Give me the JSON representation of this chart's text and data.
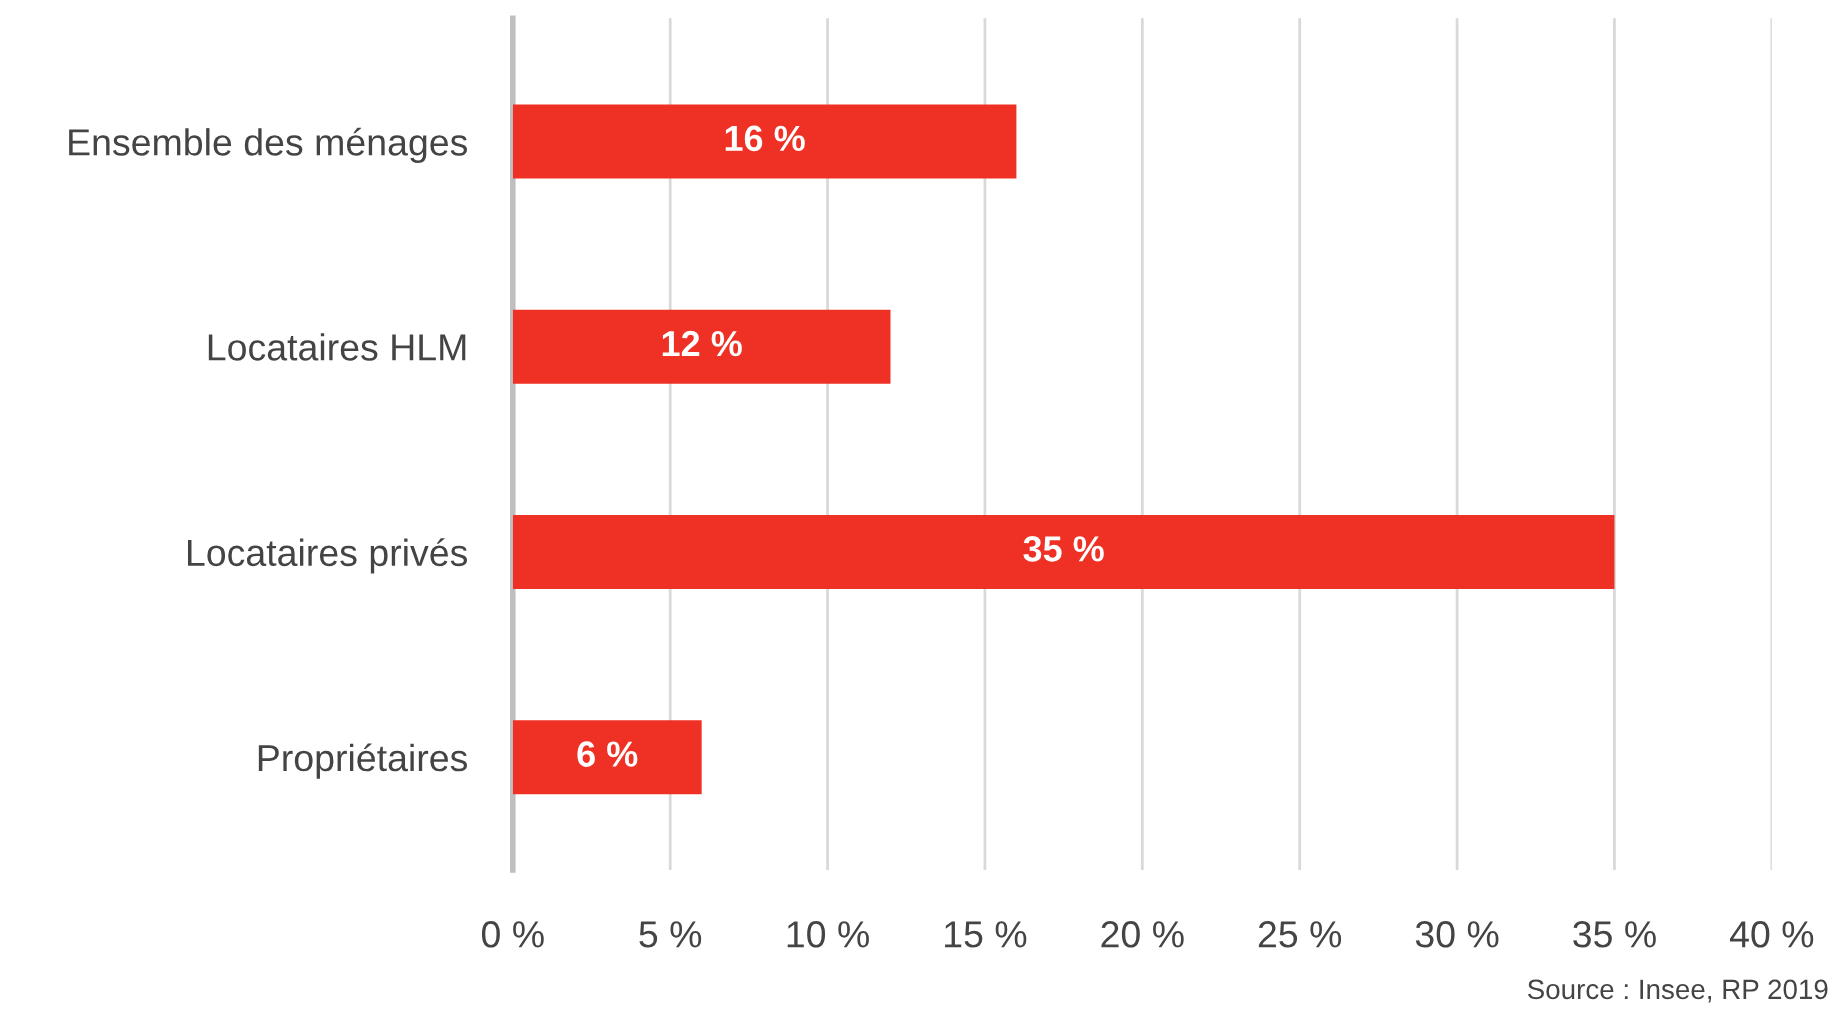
{
  "chart_data": {
    "type": "bar",
    "orientation": "horizontal",
    "categories": [
      "Ensemble des ménages",
      "Locataires HLM",
      "Locataires privés",
      "Propriétaires"
    ],
    "values": [
      16,
      12,
      35,
      6
    ],
    "value_labels": [
      "16 %",
      "12 %",
      "35 %",
      "6 %"
    ],
    "color": "#ee3124",
    "xlim": [
      0,
      40
    ],
    "xticks": [
      {
        "value": 0,
        "label": "0 %"
      },
      {
        "value": 5,
        "label": "5 %"
      },
      {
        "value": 10,
        "label": "10 %"
      },
      {
        "value": 15,
        "label": "15 %"
      },
      {
        "value": 20,
        "label": "20 %"
      },
      {
        "value": 25,
        "label": "25 %"
      },
      {
        "value": 30,
        "label": "30 %"
      },
      {
        "value": 35,
        "label": "35 %"
      },
      {
        "value": 40,
        "label": "40 %"
      }
    ],
    "grid": "x",
    "annotations": [
      "Source : Insee, RP 2019"
    ]
  }
}
